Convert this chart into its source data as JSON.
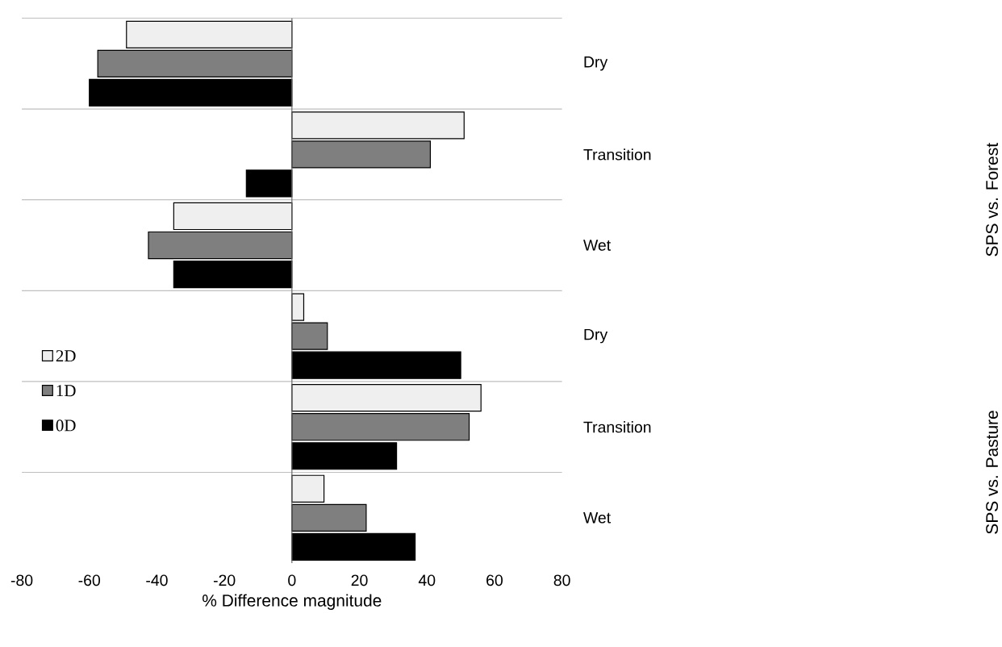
{
  "chart_data": {
    "type": "bar",
    "orientation": "horizontal",
    "xlabel": "% Difference magnitude",
    "categories": [
      "Dry",
      "Transition",
      "Wet",
      "Dry",
      "Transition",
      "Wet"
    ],
    "series": [
      {
        "name": "2D",
        "color": "#efefef",
        "values": [
          -49,
          51,
          -35,
          3.5,
          56,
          9.5
        ]
      },
      {
        "name": "1D",
        "color": "#7f7f7f",
        "values": [
          -57.5,
          41,
          -42.5,
          10.5,
          52.5,
          22
        ]
      },
      {
        "name": "0D",
        "color": "#000000",
        "values": [
          -60,
          -13.5,
          -35,
          50,
          31,
          36.5
        ]
      }
    ],
    "annotations": [
      "SPS vs. Forest",
      "SPS vs. Pasture"
    ],
    "xlim": [
      -80,
      80
    ],
    "xticks": [
      -80,
      -60,
      -40,
      -20,
      0,
      20,
      40,
      60,
      80
    ],
    "grid": "y",
    "legend": "left"
  }
}
